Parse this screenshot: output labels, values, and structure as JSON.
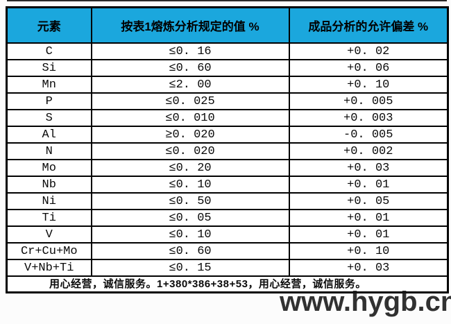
{
  "table": {
    "headers": {
      "element": "元素",
      "specified": "按表1熔炼分析规定的值 %",
      "deviation": "成品分析的允许偏差 %"
    },
    "rows": [
      {
        "element": "C",
        "specified": "≤0. 16",
        "deviation": "+0. 02"
      },
      {
        "element": "Si",
        "specified": "≤0. 60",
        "deviation": "+0. 06"
      },
      {
        "element": "Mn",
        "specified": "≤2. 00",
        "deviation": "+0. 10"
      },
      {
        "element": "P",
        "specified": "≤0. 025",
        "deviation": "+0. 005"
      },
      {
        "element": "S",
        "specified": "≤0. 010",
        "deviation": "+0. 003"
      },
      {
        "element": "Al",
        "specified": "≥0. 020",
        "deviation": "-0. 005"
      },
      {
        "element": "N",
        "specified": "≤0. 020",
        "deviation": "+0. 002"
      },
      {
        "element": "Mo",
        "specified": "≤0. 20",
        "deviation": "+0. 03"
      },
      {
        "element": "Nb",
        "specified": "≤0. 10",
        "deviation": "+0. 01"
      },
      {
        "element": "Ni",
        "specified": "≤0. 50",
        "deviation": "+0. 05"
      },
      {
        "element": "Ti",
        "specified": "≤0. 05",
        "deviation": "+0. 01"
      },
      {
        "element": "V",
        "specified": "≤0. 10",
        "deviation": "+0. 01"
      },
      {
        "element": "Cr+Cu+Mo",
        "specified": "≤0. 60",
        "deviation": "+0. 10"
      },
      {
        "element": "V+Nb+Ti",
        "specified": "≤0. 15",
        "deviation": "+0. 03"
      }
    ],
    "footer": "用心经营，诚信服务。1+380*386+38+53，用心经营，诚信服务。"
  },
  "watermark": "www.hygb.cn",
  "colors": {
    "header_bg": "#1ba7dd",
    "border": "#000000",
    "watermark": "#161616"
  }
}
